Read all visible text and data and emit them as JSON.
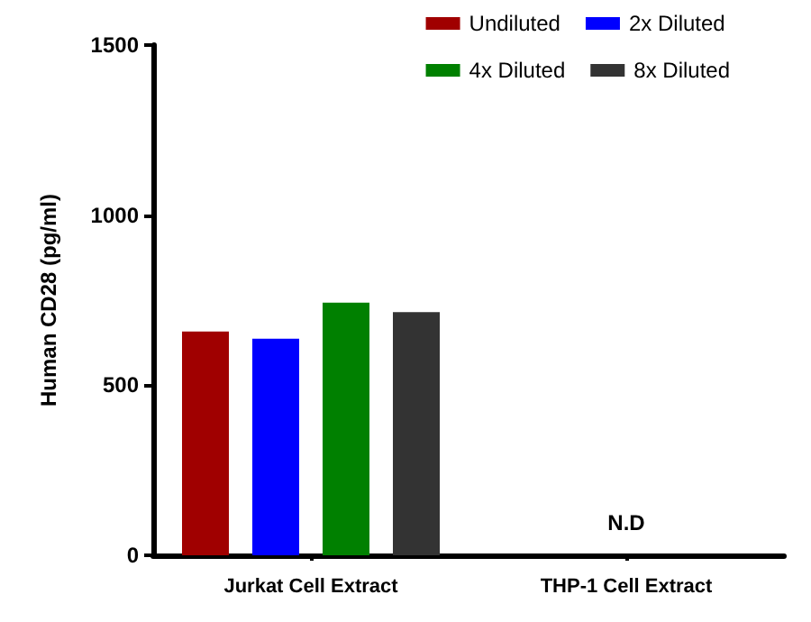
{
  "chart_data": {
    "type": "bar",
    "ylabel": "Human CD28 (pg/ml)",
    "categories": [
      "Jurkat Cell Extract",
      "THP-1 Cell Extract"
    ],
    "series": [
      {
        "name": "Undiluted",
        "color": "#a00000",
        "values": [
          658,
          null
        ]
      },
      {
        "name": "2x Diluted",
        "color": "#0000ff",
        "values": [
          637,
          null
        ]
      },
      {
        "name": "4x Diluted",
        "color": "#008000",
        "values": [
          743,
          null
        ]
      },
      {
        "name": "8x Diluted",
        "color": "#333333",
        "values": [
          715,
          null
        ]
      }
    ],
    "ylim": [
      0,
      1500
    ],
    "yticks": [
      0,
      500,
      1000,
      1500
    ],
    "grid": false,
    "legend": "top right",
    "annotations": [
      "N.D"
    ]
  }
}
